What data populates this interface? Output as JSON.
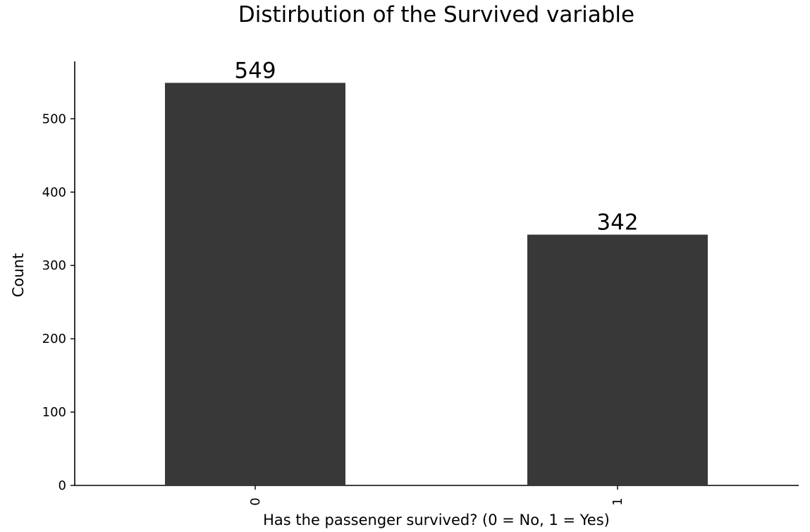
{
  "chart_data": {
    "type": "bar",
    "title": "Distirbution of the Survived variable",
    "xlabel": "Has the passenger survived? (0 = No, 1 = Yes)",
    "ylabel": "Count",
    "categories": [
      "0",
      "1"
    ],
    "values": [
      549,
      342
    ],
    "data_labels": [
      "549",
      "342"
    ],
    "ylim": [
      0,
      560
    ],
    "yticks": [
      0,
      100,
      200,
      300,
      400,
      500
    ],
    "ytick_labels": [
      "0",
      "100",
      "200",
      "300",
      "400",
      "500"
    ],
    "grid": false,
    "legend": "none",
    "bar_color": "#383838"
  }
}
